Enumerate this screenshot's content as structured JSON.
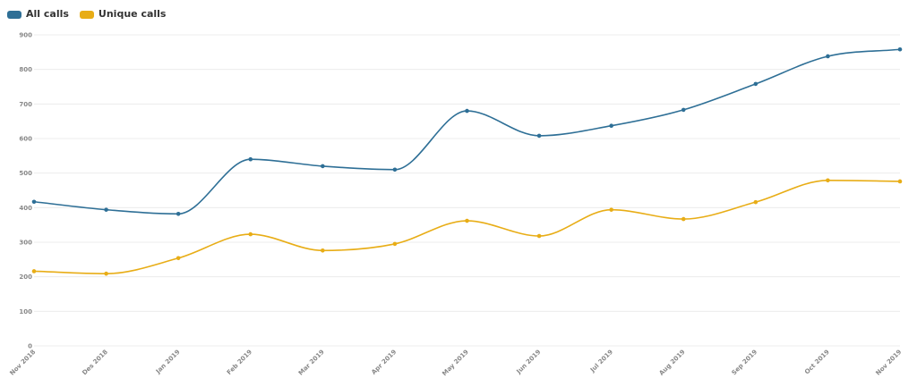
{
  "chart_data": {
    "type": "line",
    "title": "",
    "xlabel": "",
    "ylabel": "",
    "categories": [
      "Nov 2018",
      "Des 2018",
      "Jan 2019",
      "Feb 2019",
      "Mar 2019",
      "Apr 2019",
      "May 2019",
      "Jun 2019",
      "Jul 2019",
      "Aug 2019",
      "Sep 2019",
      "Oct 2019",
      "Nov 2019"
    ],
    "ylim": [
      0,
      900
    ],
    "yticks": [
      "0",
      "100",
      "200",
      "300",
      "400",
      "500",
      "600",
      "700",
      "800",
      "900"
    ],
    "grid": true,
    "legend_position": "top-left",
    "series": [
      {
        "name": "All calls",
        "color": "#2e6f96",
        "values": [
          417,
          394,
          382,
          540,
          520,
          510,
          680,
          608,
          637,
          683,
          758,
          838,
          858
        ]
      },
      {
        "name": "Unique calls",
        "color": "#e8ad16",
        "values": [
          216,
          209,
          254,
          323,
          276,
          295,
          362,
          318,
          394,
          367,
          416,
          479,
          476
        ]
      }
    ]
  }
}
